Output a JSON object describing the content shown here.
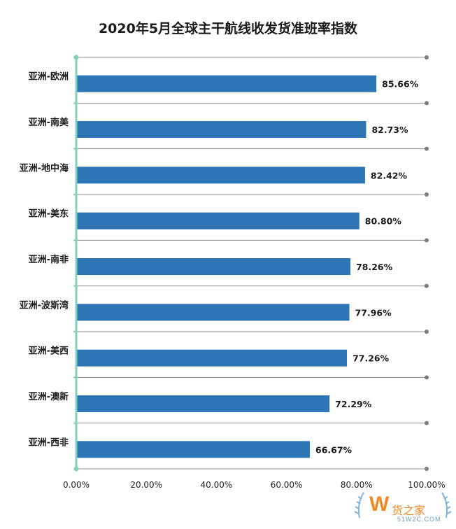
{
  "chart_data": {
    "type": "bar",
    "orientation": "horizontal",
    "title": "2020年5月全球主干航线收发货准班率指数",
    "categories": [
      "亚洲-欧洲",
      "亚洲-南美",
      "亚洲-地中海",
      "亚洲-美东",
      "亚洲-南非",
      "亚洲-波斯湾",
      "亚洲-美西",
      "亚洲-澳新",
      "亚洲-西非"
    ],
    "values": [
      85.66,
      82.73,
      82.42,
      80.8,
      78.26,
      77.96,
      77.26,
      72.29,
      66.67
    ],
    "value_labels": [
      "85.66%",
      "82.73%",
      "82.42%",
      "80.80%",
      "78.26%",
      "77.96%",
      "77.26%",
      "72.29%",
      "66.67%"
    ],
    "xlim": [
      0,
      100
    ],
    "x_ticks": [
      "0.00%",
      "20.00%",
      "40.00%",
      "60.00%",
      "80.00%",
      "100.00%"
    ],
    "bar_color": "#2e75b6",
    "axis_color": "#7fd3b9",
    "grid": true,
    "legend": "none"
  },
  "watermark": {
    "text": "货之家",
    "url": "51W2C.COM",
    "logo_letter": "W"
  }
}
